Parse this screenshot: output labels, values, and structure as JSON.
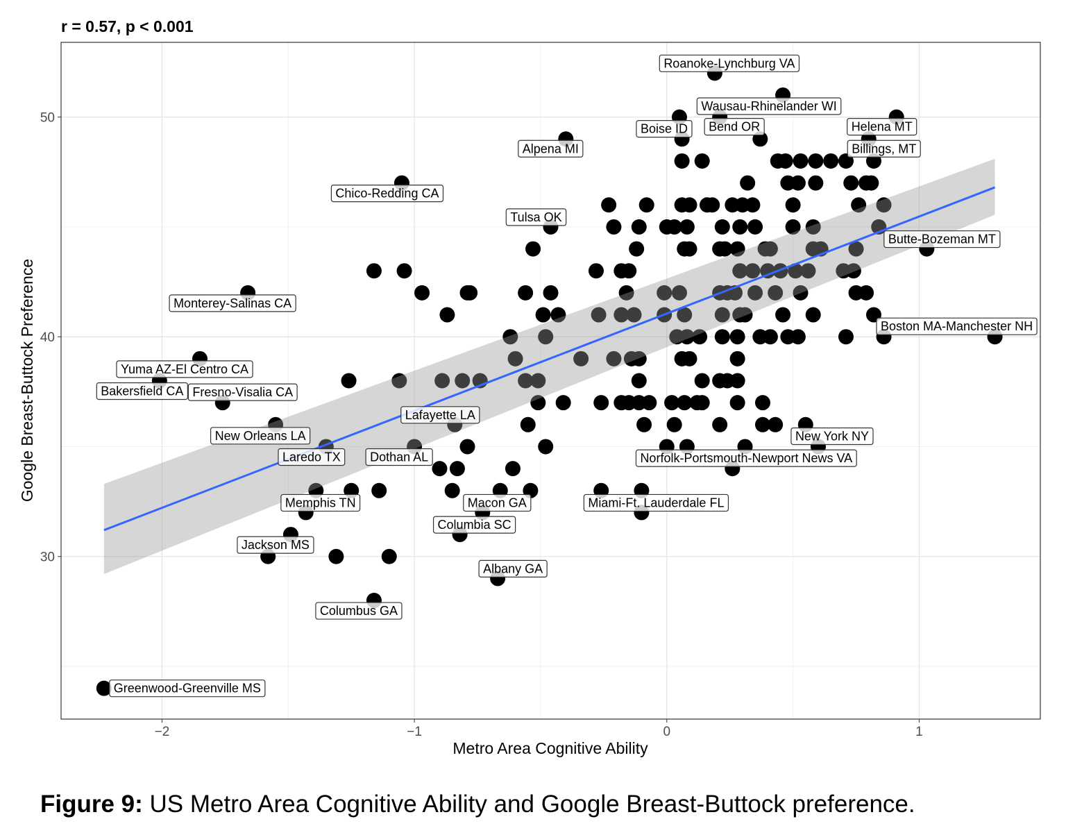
{
  "chart_data": {
    "type": "scatter",
    "title": "r = 0.57, p < 0.001",
    "xlabel": "Metro Area Cognitive Ability",
    "ylabel": "Google Breast-Buttock Preference",
    "xlim": [
      -2.4,
      1.48
    ],
    "ylim": [
      22.6,
      53.4
    ],
    "xticks": [
      -2,
      -1,
      0,
      1
    ],
    "yticks": [
      30,
      40,
      50
    ],
    "grid": true,
    "point_color": "#000000",
    "fit_line": {
      "color": "#3366FF",
      "x": [
        -2.23,
        1.3
      ],
      "y": [
        31.2,
        46.8
      ]
    },
    "confidence_band": {
      "color": "#999999",
      "x": [
        -2.23,
        1.3
      ],
      "lower": [
        29.2,
        45.55
      ],
      "upper": [
        33.3,
        48.1
      ]
    },
    "points": [
      [
        0.19,
        52
      ],
      [
        0.46,
        51
      ],
      [
        0.05,
        50
      ],
      [
        0.21,
        50
      ],
      [
        0.91,
        50
      ],
      [
        -0.4,
        49
      ],
      [
        0.06,
        49
      ],
      [
        0.37,
        49
      ],
      [
        0.8,
        49
      ],
      [
        0.06,
        48
      ],
      [
        0.14,
        48
      ],
      [
        0.44,
        48
      ],
      [
        0.47,
        48
      ],
      [
        0.53,
        48
      ],
      [
        0.59,
        48
      ],
      [
        0.65,
        48
      ],
      [
        0.71,
        48
      ],
      [
        0.82,
        48
      ],
      [
        -1.05,
        47
      ],
      [
        0.32,
        47
      ],
      [
        0.48,
        47
      ],
      [
        0.52,
        47
      ],
      [
        0.59,
        47
      ],
      [
        0.73,
        47
      ],
      [
        0.79,
        47
      ],
      [
        0.81,
        47
      ],
      [
        -0.23,
        46
      ],
      [
        -0.08,
        46
      ],
      [
        0.06,
        46
      ],
      [
        0.09,
        46
      ],
      [
        0.16,
        46
      ],
      [
        0.18,
        46
      ],
      [
        0.26,
        46
      ],
      [
        0.3,
        46
      ],
      [
        0.34,
        46
      ],
      [
        0.5,
        46
      ],
      [
        0.76,
        46
      ],
      [
        0.86,
        46
      ],
      [
        -0.46,
        45
      ],
      [
        -0.21,
        45
      ],
      [
        -0.11,
        45
      ],
      [
        0.0,
        45
      ],
      [
        0.03,
        45
      ],
      [
        0.08,
        45
      ],
      [
        0.22,
        45
      ],
      [
        0.29,
        45
      ],
      [
        0.35,
        45
      ],
      [
        0.5,
        45
      ],
      [
        0.58,
        45
      ],
      [
        0.84,
        45
      ],
      [
        -0.53,
        44
      ],
      [
        -0.12,
        44
      ],
      [
        0.07,
        44
      ],
      [
        0.09,
        44
      ],
      [
        0.21,
        44
      ],
      [
        0.23,
        44
      ],
      [
        0.28,
        44
      ],
      [
        0.39,
        44
      ],
      [
        0.41,
        44
      ],
      [
        0.58,
        44
      ],
      [
        0.61,
        44
      ],
      [
        0.75,
        44
      ],
      [
        1.03,
        44
      ],
      [
        -1.16,
        43
      ],
      [
        -1.04,
        43
      ],
      [
        -0.28,
        43
      ],
      [
        -0.18,
        43
      ],
      [
        -0.15,
        43
      ],
      [
        0.29,
        43
      ],
      [
        0.34,
        43
      ],
      [
        0.4,
        43
      ],
      [
        0.45,
        43
      ],
      [
        0.51,
        43
      ],
      [
        0.56,
        43
      ],
      [
        0.7,
        43
      ],
      [
        0.74,
        43
      ],
      [
        -1.66,
        42
      ],
      [
        -0.97,
        42
      ],
      [
        -0.79,
        42
      ],
      [
        -0.78,
        42
      ],
      [
        -0.56,
        42
      ],
      [
        -0.46,
        42
      ],
      [
        -0.16,
        42
      ],
      [
        -0.01,
        42
      ],
      [
        0.05,
        42
      ],
      [
        0.21,
        42
      ],
      [
        0.24,
        42
      ],
      [
        0.27,
        42
      ],
      [
        0.35,
        42
      ],
      [
        0.43,
        42
      ],
      [
        0.53,
        42
      ],
      [
        0.75,
        42
      ],
      [
        0.79,
        42
      ],
      [
        -0.87,
        41
      ],
      [
        -0.49,
        41
      ],
      [
        -0.43,
        41
      ],
      [
        -0.27,
        41
      ],
      [
        -0.18,
        41
      ],
      [
        -0.13,
        41
      ],
      [
        -0.01,
        41
      ],
      [
        0.07,
        41
      ],
      [
        0.22,
        41
      ],
      [
        0.29,
        41
      ],
      [
        0.31,
        41
      ],
      [
        0.46,
        41
      ],
      [
        0.58,
        41
      ],
      [
        0.82,
        41
      ],
      [
        -0.62,
        40
      ],
      [
        -0.48,
        40
      ],
      [
        0.04,
        40
      ],
      [
        0.08,
        40
      ],
      [
        0.13,
        40
      ],
      [
        0.22,
        40
      ],
      [
        0.28,
        40
      ],
      [
        0.37,
        40
      ],
      [
        0.41,
        40
      ],
      [
        0.48,
        40
      ],
      [
        0.52,
        40
      ],
      [
        0.71,
        40
      ],
      [
        0.86,
        40
      ],
      [
        1.3,
        40
      ],
      [
        -1.85,
        39
      ],
      [
        -0.6,
        39
      ],
      [
        -0.34,
        39
      ],
      [
        -0.21,
        39
      ],
      [
        -0.14,
        39
      ],
      [
        -0.11,
        39
      ],
      [
        0.06,
        39
      ],
      [
        0.09,
        39
      ],
      [
        0.28,
        39
      ],
      [
        -2.01,
        38
      ],
      [
        -1.26,
        38
      ],
      [
        -1.06,
        38
      ],
      [
        -0.89,
        38
      ],
      [
        -0.81,
        38
      ],
      [
        -0.74,
        38
      ],
      [
        -0.56,
        38
      ],
      [
        -0.51,
        38
      ],
      [
        -0.11,
        38
      ],
      [
        0.14,
        38
      ],
      [
        0.21,
        38
      ],
      [
        0.24,
        38
      ],
      [
        0.28,
        38
      ],
      [
        -1.76,
        37
      ],
      [
        -0.51,
        37
      ],
      [
        -0.41,
        37
      ],
      [
        -0.26,
        37
      ],
      [
        -0.18,
        37
      ],
      [
        -0.15,
        37
      ],
      [
        -0.11,
        37
      ],
      [
        -0.07,
        37
      ],
      [
        0.02,
        37
      ],
      [
        0.07,
        37
      ],
      [
        0.12,
        37
      ],
      [
        0.14,
        37
      ],
      [
        0.28,
        37
      ],
      [
        0.38,
        37
      ],
      [
        -1.55,
        36
      ],
      [
        -0.84,
        36
      ],
      [
        -0.55,
        36
      ],
      [
        -0.09,
        36
      ],
      [
        0.03,
        36
      ],
      [
        0.21,
        36
      ],
      [
        0.38,
        36
      ],
      [
        0.43,
        36
      ],
      [
        0.55,
        36
      ],
      [
        -1.35,
        35
      ],
      [
        -1.0,
        35
      ],
      [
        -0.79,
        35
      ],
      [
        -0.48,
        35
      ],
      [
        0.0,
        35
      ],
      [
        0.08,
        35
      ],
      [
        0.31,
        35
      ],
      [
        0.6,
        35
      ],
      [
        -0.9,
        34
      ],
      [
        -0.83,
        34
      ],
      [
        -0.61,
        34
      ],
      [
        0.26,
        34
      ],
      [
        -1.39,
        33
      ],
      [
        -1.25,
        33
      ],
      [
        -1.14,
        33
      ],
      [
        -0.85,
        33
      ],
      [
        -0.66,
        33
      ],
      [
        -0.54,
        33
      ],
      [
        -0.26,
        33
      ],
      [
        -0.1,
        33
      ],
      [
        -1.43,
        32
      ],
      [
        -0.73,
        32
      ],
      [
        -0.1,
        32
      ],
      [
        -1.49,
        31
      ],
      [
        -0.82,
        31
      ],
      [
        -1.58,
        30
      ],
      [
        -1.31,
        30
      ],
      [
        -1.1,
        30
      ],
      [
        -0.67,
        29
      ],
      [
        -1.16,
        28
      ],
      [
        -2.23,
        24
      ]
    ],
    "annotations": [
      {
        "text": "Roanoke-Lynchburg VA",
        "x": 0.19,
        "y": 52
      },
      {
        "text": "Wausau-Rhinelander WI",
        "x": 0.46,
        "y": 51
      },
      {
        "text": "Boise ID",
        "x": 0.05,
        "y": 50
      },
      {
        "text": "Bend OR",
        "x": 0.21,
        "y": 50
      },
      {
        "text": "Helena MT",
        "x": 0.91,
        "y": 50
      },
      {
        "text": "Billings, MT",
        "x": 0.8,
        "y": 49
      },
      {
        "text": "Alpena MI",
        "x": -0.4,
        "y": 49
      },
      {
        "text": "Chico-Redding CA",
        "x": -1.05,
        "y": 47
      },
      {
        "text": "Tulsa OK",
        "x": -0.46,
        "y": 45
      },
      {
        "text": "Butte-Bozeman MT",
        "x": 1.03,
        "y": 44
      },
      {
        "text": "Monterey-Salinas CA",
        "x": -1.66,
        "y": 42
      },
      {
        "text": "Boston MA-Manchester NH",
        "x": 1.3,
        "y": 40
      },
      {
        "text": "Yuma AZ-El Centro CA",
        "x": -1.85,
        "y": 39
      },
      {
        "text": "Bakersfield CA",
        "x": -2.01,
        "y": 38
      },
      {
        "text": "Fresno-Visalia CA",
        "x": -1.76,
        "y": 37
      },
      {
        "text": "New Orleans LA",
        "x": -1.55,
        "y": 36
      },
      {
        "text": "Lafayette LA",
        "x": -0.84,
        "y": 36
      },
      {
        "text": "Laredo TX",
        "x": -1.35,
        "y": 35
      },
      {
        "text": "Dothan AL",
        "x": -1.0,
        "y": 35
      },
      {
        "text": "New York NY",
        "x": 0.6,
        "y": 35
      },
      {
        "text": "Norfolk-Portsmouth-Newport News VA",
        "x": 0.26,
        "y": 34
      },
      {
        "text": "Memphis TN",
        "x": -1.43,
        "y": 32
      },
      {
        "text": "Macon GA",
        "x": -0.73,
        "y": 32
      },
      {
        "text": "Miami-Ft. Lauderdale FL",
        "x": -0.1,
        "y": 32
      },
      {
        "text": "Columbia SC",
        "x": -0.82,
        "y": 31
      },
      {
        "text": "Jackson MS",
        "x": -1.49,
        "y": 31
      },
      {
        "text": "Albany GA",
        "x": -0.67,
        "y": 29
      },
      {
        "text": "Columbus GA",
        "x": -1.16,
        "y": 28
      },
      {
        "text": "Greenwood-Greenville MS",
        "x": -2.23,
        "y": 24
      }
    ]
  },
  "caption": {
    "label": "Figure 9:",
    "text": "US Metro Area Cognitive Ability and Google Breast-Buttock preference."
  }
}
